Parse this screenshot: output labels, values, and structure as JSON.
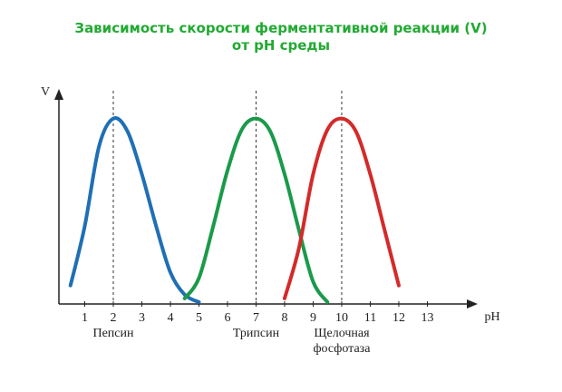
{
  "chart_data": {
    "type": "line",
    "title": [
      "Зависимость скорости ферментативной реакции (V)",
      "от pH среды"
    ],
    "xlabel": "pH",
    "ylabel": "V",
    "x": [
      0.5,
      1,
      1.5,
      2,
      2.5,
      3,
      3.5,
      4,
      4.5,
      5,
      5.5,
      6,
      6.5,
      7,
      7.5,
      8,
      8.5,
      9,
      9.5,
      10,
      10.5,
      11,
      11.5,
      12,
      12.5
    ],
    "series": [
      {
        "name": "Пепсин",
        "color": "#1f6fb5",
        "values": [
          0.1,
          0.42,
          0.85,
          1,
          0.93,
          0.7,
          0.42,
          0.17,
          0.05,
          0.01,
          null,
          null,
          null,
          null,
          null,
          null,
          null,
          null,
          null,
          null,
          null,
          null,
          null,
          null,
          null
        ]
      },
      {
        "name": "Трипсин",
        "color": "#1a9a4a",
        "values": [
          null,
          null,
          null,
          null,
          null,
          null,
          null,
          null,
          0.03,
          0.14,
          0.42,
          0.72,
          0.94,
          1,
          0.93,
          0.7,
          0.4,
          0.12,
          0.01,
          null,
          null,
          null,
          null,
          null,
          null
        ]
      },
      {
        "name": "Щелочная фосфотаза",
        "color": "#d42a2a",
        "values": [
          null,
          null,
          null,
          null,
          null,
          null,
          null,
          null,
          null,
          null,
          null,
          null,
          null,
          null,
          null,
          0.03,
          0.3,
          0.7,
          0.94,
          1,
          0.93,
          0.7,
          0.4,
          0.1,
          null
        ]
      }
    ],
    "xlim": [
      0,
      14.7
    ],
    "ylim": [
      0,
      1.15
    ],
    "xticks": [
      1,
      2,
      3,
      4,
      5,
      6,
      7,
      8,
      9,
      10,
      11,
      12,
      13
    ]
  }
}
